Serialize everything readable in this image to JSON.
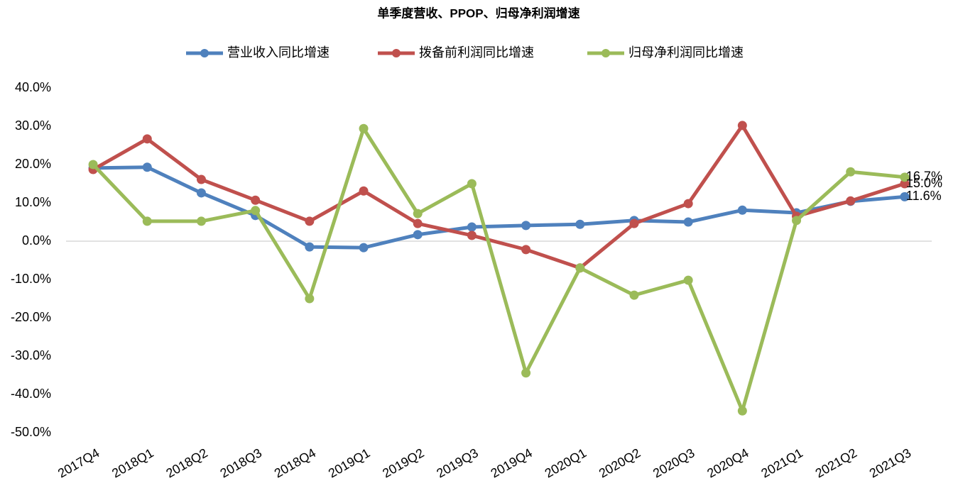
{
  "chart_data": {
    "type": "line",
    "title": "单季度营收、PPOP、归母净利润增速",
    "categories": [
      "2017Q4",
      "2018Q1",
      "2018Q2",
      "2018Q3",
      "2018Q4",
      "2019Q1",
      "2019Q2",
      "2019Q3",
      "2019Q4",
      "2020Q1",
      "2020Q2",
      "2020Q3",
      "2020Q4",
      "2021Q1",
      "2021Q2",
      "2021Q3"
    ],
    "series": [
      {
        "name": "营业收入同比增速",
        "color": "#4f81bd",
        "values": [
          19.1,
          19.3,
          12.6,
          6.7,
          -1.5,
          -1.7,
          1.7,
          3.7,
          4.1,
          4.4,
          5.4,
          5.0,
          8.1,
          7.4,
          10.4,
          11.6
        ],
        "value_labels": [
          null,
          null,
          null,
          null,
          null,
          null,
          null,
          null,
          null,
          null,
          null,
          null,
          null,
          null,
          null,
          "11.6%"
        ]
      },
      {
        "name": "拨备前利润同比增速",
        "color": "#c0504d",
        "values": [
          18.7,
          26.7,
          16.1,
          10.7,
          5.2,
          13.1,
          4.6,
          1.5,
          -2.2,
          -7.0,
          4.6,
          9.8,
          30.2,
          6.5,
          10.5,
          15.0
        ],
        "value_labels": [
          null,
          null,
          null,
          null,
          null,
          null,
          null,
          null,
          null,
          null,
          null,
          null,
          null,
          null,
          null,
          "15.0%"
        ]
      },
      {
        "name": "归母净利润同比增速",
        "color": "#9bbb59",
        "values": [
          20.0,
          5.2,
          5.2,
          8.0,
          -15.0,
          29.4,
          7.2,
          15.0,
          -34.4,
          -7.0,
          -14.1,
          -10.2,
          -44.3,
          5.4,
          18.1,
          16.7
        ],
        "value_labels": [
          null,
          null,
          null,
          null,
          null,
          null,
          null,
          null,
          null,
          null,
          null,
          null,
          null,
          null,
          null,
          "16.7%"
        ]
      }
    ],
    "ylim": [
      -50,
      40
    ],
    "yticks": [
      {
        "value": -50,
        "label": "-50.0%"
      },
      {
        "value": -40,
        "label": "-40.0%"
      },
      {
        "value": -30,
        "label": "-30.0%"
      },
      {
        "value": -20,
        "label": "-20.0%"
      },
      {
        "value": -10,
        "label": "-10.0%"
      },
      {
        "value": 0,
        "label": "0.0%"
      },
      {
        "value": 10,
        "label": "10.0%"
      },
      {
        "value": 20,
        "label": "20.0%"
      },
      {
        "value": 30,
        "label": "30.0%"
      },
      {
        "value": 40,
        "label": "40.0%"
      }
    ],
    "grid": false,
    "legend": "top"
  }
}
